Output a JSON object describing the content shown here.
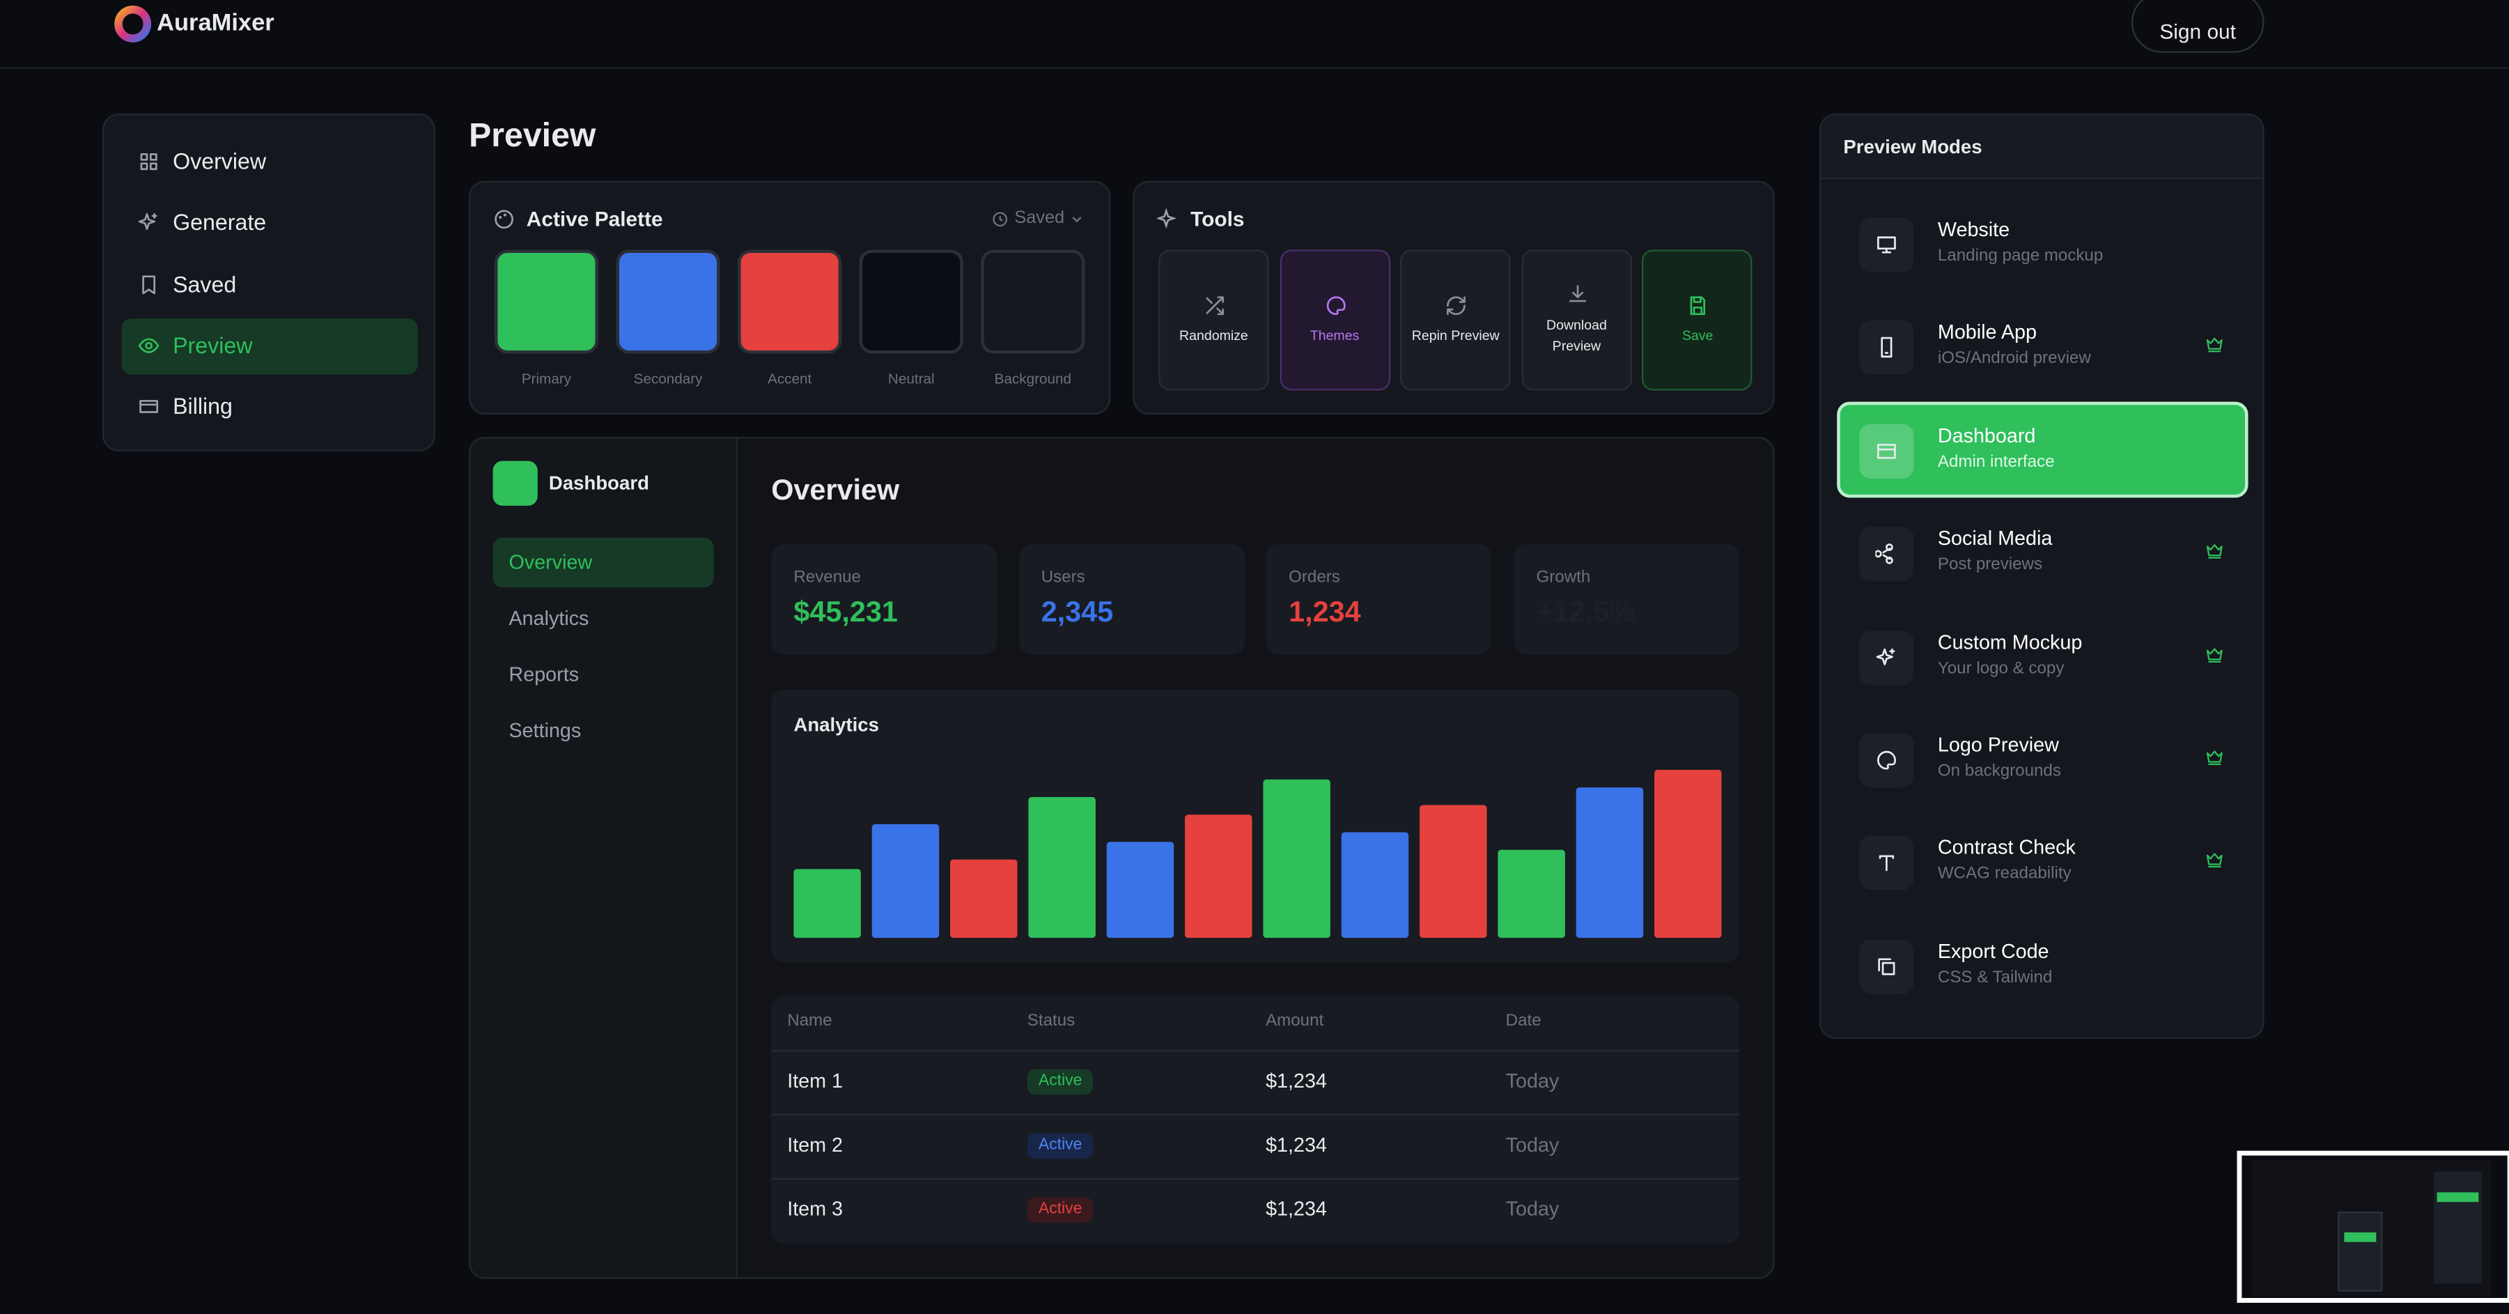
{
  "header": {
    "brand": "AuraMixer",
    "sign_out": "Sign out"
  },
  "nav": [
    "Overview",
    "Generate",
    "Saved",
    "Preview",
    "Billing"
  ],
  "page_title": "Preview",
  "palette": {
    "title": "Active Palette",
    "saved": "Saved",
    "swatches": [
      {
        "name": "Primary",
        "color": "#2fbf5b"
      },
      {
        "name": "Secondary",
        "color": "#3a72e8"
      },
      {
        "name": "Accent",
        "color": "#e5413f"
      },
      {
        "name": "Neutral",
        "color": "#0b0d14"
      },
      {
        "name": "Background",
        "color": "#15181e"
      }
    ]
  },
  "tools": {
    "title": "Tools",
    "items": [
      "Randomize",
      "Themes",
      "Repin Preview",
      "Download Preview",
      "Save"
    ]
  },
  "dashboard": {
    "brand": "Dashboard",
    "menu": [
      "Overview",
      "Analytics",
      "Reports",
      "Settings"
    ],
    "heading": "Overview",
    "stats": [
      {
        "label": "Revenue",
        "value": "$45,231"
      },
      {
        "label": "Users",
        "value": "2,345"
      },
      {
        "label": "Orders",
        "value": "1,234"
      },
      {
        "label": "Growth",
        "value": "+12.5%"
      }
    ],
    "analytics": {
      "title": "Analytics",
      "values": [
        43,
        71,
        49,
        88,
        60,
        77,
        99,
        66,
        83,
        55,
        94,
        105
      ],
      "colors": [
        "#2fbf5b",
        "#3a72e8",
        "#e5413f"
      ]
    },
    "table": {
      "columns": [
        "Name",
        "Status",
        "Amount",
        "Date"
      ],
      "rows": [
        [
          "Item 1",
          "Active",
          "$1,234",
          "Today"
        ],
        [
          "Item 2",
          "Active",
          "$1,234",
          "Today"
        ],
        [
          "Item 3",
          "Active",
          "$1,234",
          "Today"
        ]
      ]
    }
  },
  "modes": {
    "title": "Preview Modes",
    "items": [
      {
        "name": "Website",
        "desc": "Landing page mockup",
        "premium": false
      },
      {
        "name": "Mobile App",
        "desc": "iOS/Android preview",
        "premium": true
      },
      {
        "name": "Dashboard",
        "desc": "Admin interface",
        "premium": false
      },
      {
        "name": "Social Media",
        "desc": "Post previews",
        "premium": true
      },
      {
        "name": "Custom Mockup",
        "desc": "Your logo & copy",
        "premium": true
      },
      {
        "name": "Logo Preview",
        "desc": "On backgrounds",
        "premium": true
      },
      {
        "name": "Contrast Check",
        "desc": "WCAG readability",
        "premium": true
      },
      {
        "name": "Export Code",
        "desc": "CSS & Tailwind",
        "premium": false
      }
    ]
  }
}
